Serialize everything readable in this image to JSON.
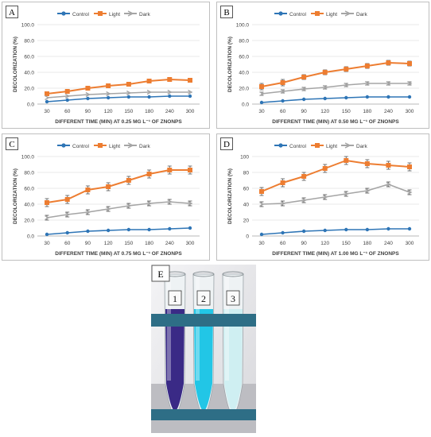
{
  "chart_data": [
    {
      "id": "A",
      "panel_label": "A",
      "type": "line",
      "x": [
        30,
        60,
        90,
        120,
        150,
        180,
        240,
        300
      ],
      "xlabel": "DIFFERENT TIME (MIN) AT 0.25 MG L⁻¹ OF ZNONPS",
      "ylabel": "DECOLORIZATION (%)",
      "ylim": [
        0,
        100
      ],
      "yticks": [
        "0.0",
        "20.0",
        "40.0",
        "60.0",
        "80.0",
        "100.0"
      ],
      "legend": "top",
      "series": [
        {
          "name": "Control",
          "color": "#2e75b6",
          "values": [
            3,
            5,
            7,
            8,
            9,
            9,
            10,
            10
          ],
          "err": [
            0.5,
            0.5,
            0.5,
            0.5,
            0.5,
            0.5,
            0.5,
            0.5
          ]
        },
        {
          "name": "Light",
          "color": "#ed7d31",
          "values": [
            13,
            16,
            20,
            23,
            25,
            29,
            31,
            30
          ],
          "err": [
            1.5,
            1.5,
            1.5,
            1.5,
            1.5,
            2,
            2,
            1.5
          ]
        },
        {
          "name": "Dark",
          "color": "#a5a5a5",
          "values": [
            8,
            10,
            12,
            13,
            14,
            15,
            15,
            15
          ],
          "err": [
            0.5,
            0.5,
            0.5,
            0.5,
            0.5,
            0.5,
            0.5,
            0.5
          ]
        }
      ]
    },
    {
      "id": "B",
      "panel_label": "B",
      "type": "line",
      "x": [
        30,
        60,
        90,
        120,
        150,
        180,
        240,
        300
      ],
      "xlabel": "DIFFERENT TIME (MIN) AT 0.50 MG L⁻¹ OF ZNONPS",
      "ylabel": "DECOLORIZATION (%)",
      "ylim": [
        0,
        100
      ],
      "yticks": [
        "0.0",
        "20.0",
        "40.0",
        "60.0",
        "80.0",
        "100.0"
      ],
      "legend": "top",
      "series": [
        {
          "name": "Control",
          "color": "#2e75b6",
          "values": [
            2,
            4,
            6,
            7,
            8,
            9,
            9,
            9
          ],
          "err": [
            0.5,
            0.5,
            0.5,
            0.5,
            0.5,
            0.5,
            0.5,
            0.5
          ]
        },
        {
          "name": "Light",
          "color": "#ed7d31",
          "values": [
            22,
            27,
            34,
            40,
            44,
            48,
            52,
            51
          ],
          "err": [
            4,
            4,
            3,
            3,
            3,
            3,
            3,
            3
          ]
        },
        {
          "name": "Dark",
          "color": "#a5a5a5",
          "values": [
            13,
            16,
            19,
            21,
            24,
            26,
            26,
            26
          ],
          "err": [
            2,
            2,
            2,
            2,
            2,
            2,
            2,
            2
          ]
        }
      ]
    },
    {
      "id": "C",
      "panel_label": "C",
      "type": "line",
      "x": [
        30,
        60,
        90,
        120,
        150,
        180,
        240,
        300
      ],
      "xlabel": "DIFFERENT TIME (MIN) AT 0.75 MG L⁻¹ OF ZNONPS",
      "ylabel": "DECOLORIZATION (%)",
      "ylim": [
        0,
        100
      ],
      "yticks": [
        "0.0",
        "20.0",
        "40.0",
        "60.0",
        "80.0",
        "100.0"
      ],
      "legend": "top",
      "series": [
        {
          "name": "Control",
          "color": "#2e75b6",
          "values": [
            2,
            4,
            6,
            7,
            8,
            8,
            9,
            10
          ],
          "err": [
            0.5,
            0.5,
            0.5,
            0.5,
            0.5,
            0.5,
            0.5,
            0.5
          ]
        },
        {
          "name": "Light",
          "color": "#ed7d31",
          "values": [
            42,
            46,
            58,
            62,
            70,
            78,
            83,
            83
          ],
          "err": [
            5,
            5,
            5,
            5,
            5,
            5,
            5,
            5
          ]
        },
        {
          "name": "Dark",
          "color": "#a5a5a5",
          "values": [
            23,
            27,
            30,
            34,
            38,
            41,
            43,
            41
          ],
          "err": [
            3,
            3,
            3,
            3,
            3,
            3,
            3,
            3
          ]
        }
      ]
    },
    {
      "id": "D",
      "panel_label": "D",
      "type": "line",
      "x": [
        30,
        60,
        90,
        120,
        150,
        180,
        240,
        300
      ],
      "xlabel": "DIFFERENT TIME (MIN) AT 1.00 MG L⁻¹ OF ZNONPS",
      "ylabel": "DECOLORIZATION (%)",
      "ylim": [
        0,
        100
      ],
      "yticks": [
        "0",
        "20",
        "40",
        "60",
        "80",
        "100"
      ],
      "legend": "top",
      "series": [
        {
          "name": "Control",
          "color": "#2e75b6",
          "values": [
            2,
            4,
            6,
            7,
            8,
            8,
            9,
            9
          ],
          "err": [
            0.5,
            0.5,
            0.5,
            0.5,
            0.5,
            0.5,
            0.5,
            0.5
          ]
        },
        {
          "name": "Light",
          "color": "#ed7d31",
          "values": [
            56,
            67,
            75,
            85,
            95,
            91,
            89,
            87
          ],
          "err": [
            5,
            5,
            5,
            5,
            5,
            5,
            5,
            5
          ]
        },
        {
          "name": "Dark",
          "color": "#a5a5a5",
          "values": [
            40,
            41,
            45,
            49,
            53,
            57,
            65,
            55
          ],
          "err": [
            3,
            3,
            3,
            3,
            3,
            3,
            3,
            3
          ]
        }
      ]
    }
  ],
  "photo": {
    "panel_label": "E",
    "tubes": [
      {
        "label": "1",
        "liquid_color": "#3a2a86"
      },
      {
        "label": "2",
        "liquid_color": "#22c6e6"
      },
      {
        "label": "3",
        "liquid_color": "#cfeff2"
      }
    ],
    "rack_color": "#2e6e86"
  }
}
